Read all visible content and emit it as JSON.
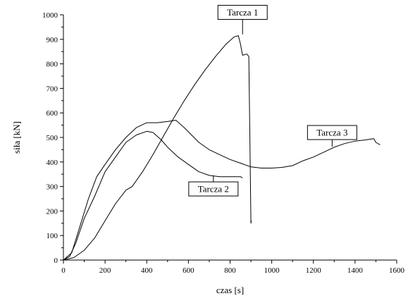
{
  "chart_data": {
    "type": "line",
    "title": "",
    "xlabel": "czas [s]",
    "ylabel": "siła [kN]",
    "xlim": [
      0,
      1600
    ],
    "ylim": [
      0,
      1000
    ],
    "x_ticks": [
      0,
      200,
      400,
      600,
      800,
      1000,
      1200,
      1400,
      1600
    ],
    "y_ticks": [
      0,
      100,
      200,
      300,
      400,
      500,
      600,
      700,
      800,
      900,
      1000
    ],
    "grid": false,
    "legend": "none",
    "line_color": "#000000",
    "series": [
      {
        "name": "Tarcza 1",
        "points": [
          [
            0,
            0
          ],
          [
            50,
            10
          ],
          [
            100,
            40
          ],
          [
            150,
            90
          ],
          [
            200,
            160
          ],
          [
            250,
            230
          ],
          [
            300,
            285
          ],
          [
            330,
            300
          ],
          [
            380,
            360
          ],
          [
            430,
            430
          ],
          [
            480,
            505
          ],
          [
            530,
            580
          ],
          [
            580,
            650
          ],
          [
            630,
            715
          ],
          [
            680,
            775
          ],
          [
            730,
            830
          ],
          [
            780,
            880
          ],
          [
            820,
            910
          ],
          [
            840,
            915
          ],
          [
            850,
            880
          ],
          [
            860,
            835
          ],
          [
            880,
            840
          ],
          [
            890,
            830
          ],
          [
            895,
            500
          ],
          [
            900,
            150
          ],
          [
            902,
            160
          ]
        ]
      },
      {
        "name": "Tarcza 2",
        "points": [
          [
            0,
            0
          ],
          [
            30,
            15
          ],
          [
            60,
            70
          ],
          [
            100,
            170
          ],
          [
            150,
            260
          ],
          [
            200,
            360
          ],
          [
            250,
            420
          ],
          [
            300,
            480
          ],
          [
            350,
            510
          ],
          [
            400,
            525
          ],
          [
            430,
            520
          ],
          [
            470,
            490
          ],
          [
            500,
            460
          ],
          [
            550,
            420
          ],
          [
            600,
            390
          ],
          [
            650,
            360
          ],
          [
            700,
            345
          ],
          [
            750,
            340
          ],
          [
            800,
            340
          ],
          [
            850,
            340
          ],
          [
            860,
            335
          ]
        ]
      },
      {
        "name": "Tarcza 3",
        "points": [
          [
            0,
            0
          ],
          [
            40,
            30
          ],
          [
            80,
            140
          ],
          [
            120,
            250
          ],
          [
            160,
            340
          ],
          [
            200,
            390
          ],
          [
            250,
            450
          ],
          [
            300,
            500
          ],
          [
            350,
            540
          ],
          [
            400,
            560
          ],
          [
            450,
            560
          ],
          [
            500,
            565
          ],
          [
            540,
            570
          ],
          [
            580,
            540
          ],
          [
            650,
            480
          ],
          [
            700,
            450
          ],
          [
            750,
            430
          ],
          [
            800,
            410
          ],
          [
            850,
            395
          ],
          [
            900,
            380
          ],
          [
            950,
            375
          ],
          [
            1000,
            375
          ],
          [
            1050,
            378
          ],
          [
            1100,
            385
          ],
          [
            1150,
            405
          ],
          [
            1200,
            420
          ],
          [
            1250,
            440
          ],
          [
            1300,
            460
          ],
          [
            1350,
            475
          ],
          [
            1400,
            485
          ],
          [
            1450,
            490
          ],
          [
            1490,
            495
          ],
          [
            1500,
            480
          ],
          [
            1520,
            470
          ]
        ]
      }
    ],
    "annotations": [
      {
        "text": "Tarcza 1",
        "target": [
          860,
          920
        ],
        "label_at": [
          860,
          1010
        ]
      },
      {
        "text": "Tarcza 2",
        "target": [
          720,
          345
        ],
        "label_at": [
          720,
          290
        ]
      },
      {
        "text": "Tarcza 3",
        "target": [
          1290,
          462
        ],
        "label_at": [
          1290,
          520
        ]
      }
    ]
  }
}
